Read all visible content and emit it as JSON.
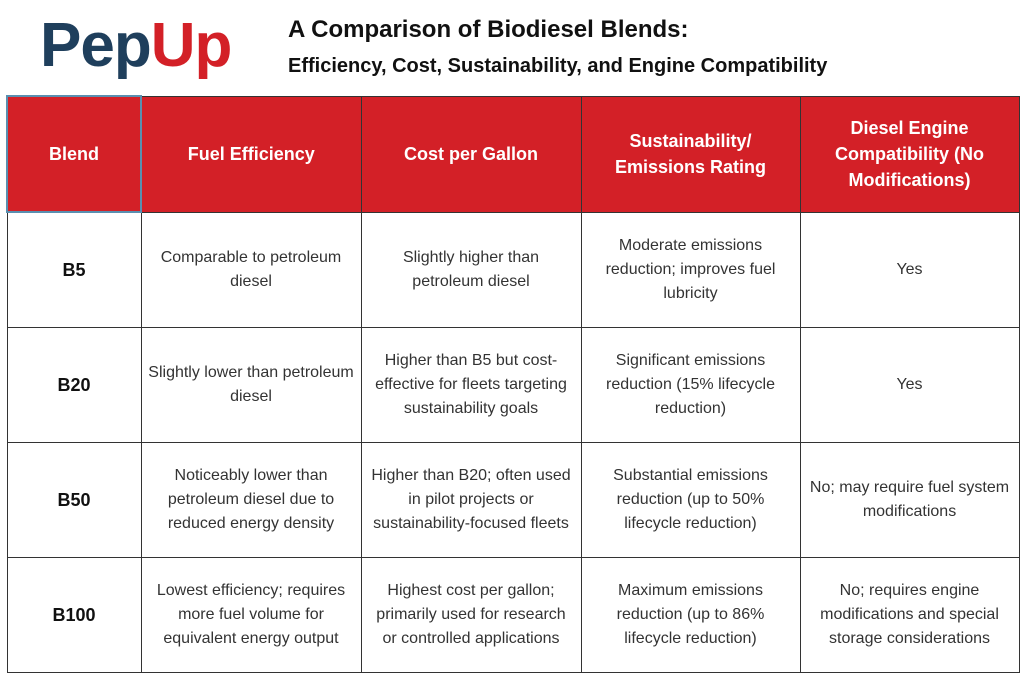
{
  "logo": {
    "part1": "Pep",
    "part2": "Up"
  },
  "title": {
    "line1": "A Comparison of Biodiesel Blends:",
    "line2": "Efficiency, Cost, Sustainability, and Engine Compatibility"
  },
  "colors": {
    "brand_red": "#d32027",
    "brand_navy": "#1f3f5c"
  },
  "table": {
    "headers": [
      "Blend",
      "Fuel Efficiency",
      "Cost per Gallon",
      "Sustainability/ Emissions Rating",
      "Diesel Engine Compatibility (No Modifications)"
    ],
    "rows": [
      {
        "blend": "B5",
        "efficiency": "Comparable to petroleum diesel",
        "cost": "Slightly higher than petroleum diesel",
        "sustainability": "Moderate emissions reduction; improves fuel lubricity",
        "compatibility": "Yes"
      },
      {
        "blend": "B20",
        "efficiency": "Slightly lower than petroleum diesel",
        "cost": "Higher than B5 but cost-effective for fleets targeting sustainability goals",
        "sustainability": "Significant emissions reduction (15% lifecycle reduction)",
        "compatibility": "Yes"
      },
      {
        "blend": "B50",
        "efficiency": "Noticeably lower than petroleum diesel due to reduced energy density",
        "cost": "Higher than B20; often used in pilot projects or sustainability-focused fleets",
        "sustainability": "Substantial emissions reduction (up to 50% lifecycle reduction)",
        "compatibility": "No; may require fuel system modifications"
      },
      {
        "blend": "B100",
        "efficiency": "Lowest efficiency; requires more fuel volume for equivalent energy output",
        "cost": "Highest cost per gallon; primarily used for research or controlled applications",
        "sustainability": "Maximum emissions reduction (up to 86% lifecycle reduction)",
        "compatibility": "No; requires engine modifications and special storage considerations"
      }
    ]
  }
}
